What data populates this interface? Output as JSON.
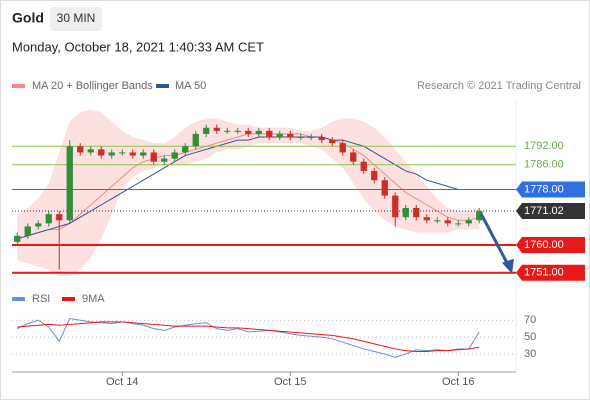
{
  "chart_data": {
    "type": "candlestick",
    "title": "Gold",
    "timeframe": "30 MIN",
    "subtitle": "Monday, October 18, 2021 1:40:33 AM CET",
    "credit": "Research © 2021 Trading Central",
    "categories": [
      null,
      null,
      null,
      null,
      null,
      null,
      null,
      null,
      null,
      null,
      "Oct 14",
      null,
      null,
      null,
      null,
      null,
      null,
      null,
      null,
      null,
      null,
      null,
      null,
      null,
      null,
      null,
      "Oct 15",
      null,
      null,
      null,
      null,
      null,
      null,
      null,
      null,
      null,
      null,
      null,
      null,
      null,
      null,
      null,
      "Oct 16",
      null,
      null
    ],
    "open": [
      1761,
      1763,
      1766,
      1767,
      1770,
      1768,
      1792,
      1790,
      1791,
      1789,
      1790,
      1790,
      1789,
      1790,
      1787,
      1788,
      1790,
      1792,
      1796,
      1798,
      1797,
      1797,
      1797,
      1796,
      1797,
      1795,
      1796,
      1795,
      1795,
      1795,
      1794,
      1793,
      1790,
      1787,
      1784,
      1781,
      1776,
      1769,
      1772,
      1769,
      1768,
      1768,
      1767,
      1767,
      1768
    ],
    "high": [
      1764,
      1767,
      1768,
      1771,
      1771,
      1794,
      1793,
      1792,
      1792,
      1791,
      1791,
      1791,
      1791,
      1791,
      1789,
      1791,
      1793,
      1797,
      1799,
      1799,
      1798,
      1798,
      1798,
      1798,
      1798,
      1797,
      1797,
      1796,
      1796,
      1796,
      1795,
      1794,
      1791,
      1788,
      1785,
      1782,
      1777,
      1773,
      1773,
      1770,
      1769,
      1769,
      1768,
      1769,
      1772
    ],
    "low": [
      1760,
      1762,
      1765,
      1766,
      1752,
      1767,
      1789,
      1789,
      1788,
      1788,
      1789,
      1788,
      1788,
      1786,
      1786,
      1787,
      1789,
      1791,
      1795,
      1796,
      1796,
      1796,
      1795,
      1795,
      1794,
      1794,
      1794,
      1794,
      1794,
      1793,
      1792,
      1789,
      1786,
      1783,
      1780,
      1775,
      1766,
      1768,
      1768,
      1767,
      1767,
      1766,
      1766,
      1766,
      1767
    ],
    "close": [
      1763,
      1766,
      1767,
      1770,
      1768,
      1792,
      1790,
      1791,
      1789,
      1790,
      1790,
      1789,
      1790,
      1787,
      1788,
      1790,
      1792,
      1796,
      1798,
      1797,
      1797,
      1797,
      1796,
      1797,
      1795,
      1796,
      1795,
      1795,
      1795,
      1794,
      1793,
      1790,
      1787,
      1784,
      1781,
      1776,
      1769,
      1772,
      1769,
      1768,
      1768,
      1767,
      1767,
      1768,
      1771
    ],
    "up_color": "#2f8f3a",
    "down_color": "#c9302c",
    "ylim": [
      1748,
      1807
    ],
    "series": [
      {
        "name": "MA 20 + Bollinger Bands",
        "color": "#f28b82",
        "band_color": "#fde0e0",
        "values": [
          1762,
          1763,
          1764,
          1765,
          1765,
          1767,
          1770,
          1773,
          1776,
          1779,
          1782,
          1785,
          1787,
          1788,
          1789,
          1789,
          1790,
          1791,
          1792,
          1793,
          1794,
          1795,
          1796,
          1796,
          1796,
          1796,
          1796,
          1796,
          1795,
          1795,
          1794,
          1793,
          1791,
          1789,
          1786,
          1783,
          1780,
          1777,
          1775,
          1773,
          1771,
          1769,
          1768,
          1768,
          1769
        ],
        "upper": [
          1770,
          1772,
          1775,
          1780,
          1790,
          1800,
          1803,
          1804,
          1803,
          1800,
          1797,
          1795,
          1794,
          1793,
          1793,
          1795,
          1798,
          1800,
          1801,
          1801,
          1800,
          1799,
          1799,
          1798,
          1798,
          1798,
          1798,
          1797,
          1797,
          1798,
          1800,
          1801,
          1801,
          1800,
          1798,
          1795,
          1791,
          1787,
          1783,
          1779,
          1775,
          1772,
          1771,
          1771,
          1772
        ],
        "lower": [
          1755,
          1754,
          1753,
          1752,
          1750,
          1750,
          1752,
          1756,
          1762,
          1770,
          1778,
          1782,
          1784,
          1785,
          1786,
          1786,
          1786,
          1787,
          1788,
          1790,
          1791,
          1791,
          1792,
          1793,
          1793,
          1793,
          1793,
          1793,
          1792,
          1791,
          1788,
          1785,
          1780,
          1775,
          1771,
          1768,
          1766,
          1765,
          1764,
          1764,
          1764,
          1764,
          1765,
          1765,
          1765
        ]
      },
      {
        "name": "MA 50",
        "color": "#2f5597",
        "values": [
          1762,
          1763,
          1764,
          1765,
          1766,
          1767,
          1769,
          1771,
          1773,
          1775,
          1777,
          1779,
          1781,
          1783,
          1785,
          1787,
          1789,
          1790,
          1791,
          1792,
          1793,
          1794,
          1794,
          1795,
          1795,
          1795,
          1795,
          1795,
          1795,
          1795,
          1794,
          1794,
          1793,
          1792,
          1790,
          1788,
          1786,
          1784,
          1783,
          1781,
          1780,
          1779,
          1778,
          1778,
          1778
        ]
      }
    ],
    "levels": {
      "values": [
        1792,
        1786,
        1778,
        1771.02,
        1760,
        1751
      ],
      "value_labels": [
        "1792.00",
        "1786.00",
        "1778.00",
        "1771.02",
        "1760.00",
        "1751.00"
      ],
      "colors": [
        "#8cc34a",
        "#8cc34a",
        "#2f6fe4",
        "#333333",
        "#e61919",
        "#e61919"
      ],
      "boxed": [
        false,
        false,
        true,
        true,
        true,
        true
      ]
    },
    "rsi": {
      "type": "line",
      "ylim": [
        17,
        88
      ],
      "yticks": [
        30,
        50,
        70
      ],
      "series": [
        {
          "name": "RSI",
          "color": "#6b8fdc",
          "values": [
            60,
            66,
            70,
            62,
            45,
            72,
            70,
            68,
            67,
            66,
            68,
            66,
            64,
            60,
            58,
            62,
            64,
            66,
            67,
            60,
            58,
            60,
            56,
            57,
            58,
            56,
            54,
            52,
            51,
            50,
            48,
            44,
            40,
            36,
            33,
            30,
            26,
            30,
            35,
            34,
            35,
            34,
            36,
            36,
            56
          ]
        },
        {
          "name": "9MA",
          "color": "#e61919",
          "values": [
            62,
            63,
            64,
            65,
            64,
            65,
            66,
            67,
            68,
            68,
            68,
            67,
            66,
            65,
            64,
            63,
            63,
            63,
            63,
            62,
            61,
            61,
            60,
            59,
            58,
            57,
            56,
            55,
            54,
            53,
            52,
            50,
            48,
            45,
            42,
            39,
            36,
            34,
            33,
            33,
            34,
            34,
            35,
            36,
            38
          ]
        }
      ]
    }
  }
}
